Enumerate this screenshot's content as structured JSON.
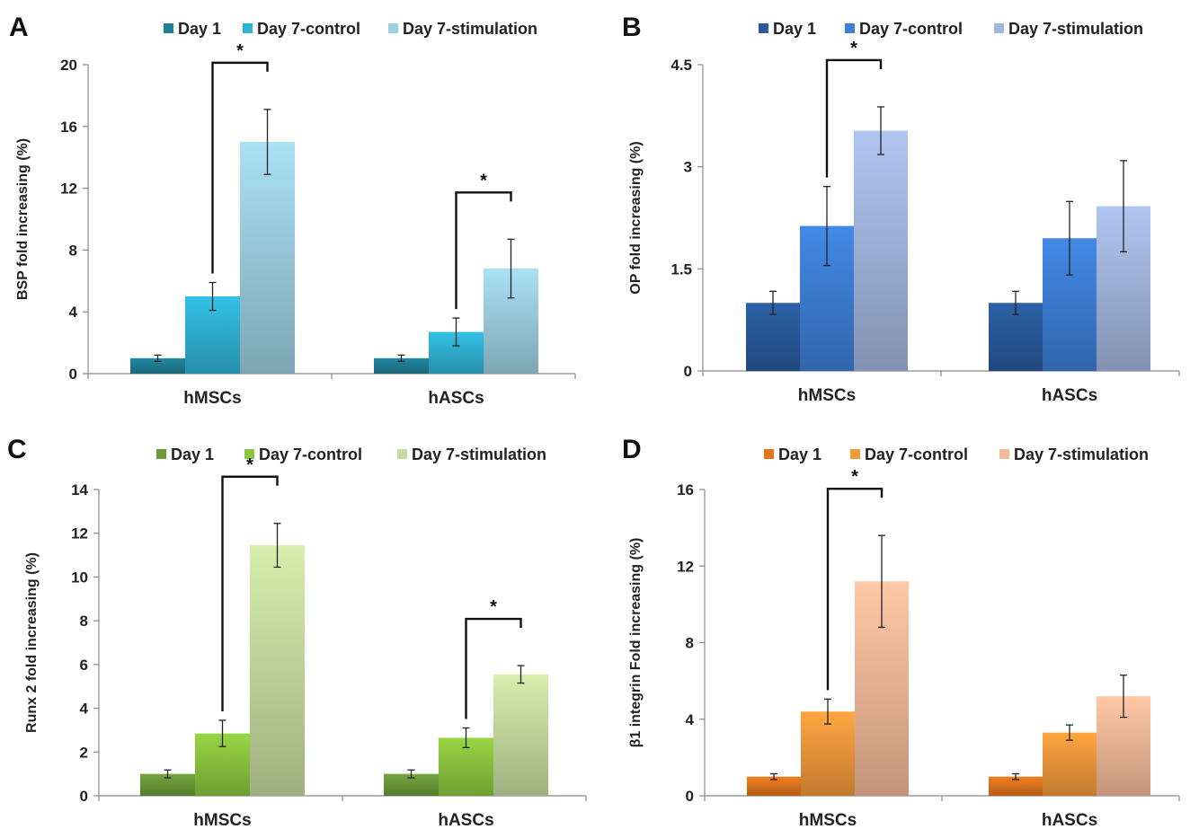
{
  "chart_data": [
    {
      "panel": "A",
      "type": "bar",
      "ylabel": "BSP fold increasing (%)",
      "categories": [
        "hMSCs",
        "hASCs"
      ],
      "yticks": [
        "0",
        "4",
        "8",
        "12",
        "16",
        "20"
      ],
      "ylim": [
        0,
        20
      ],
      "series": [
        {
          "name": "Day 1",
          "values": [
            1.0,
            1.0
          ],
          "errors": [
            0.2,
            0.2
          ]
        },
        {
          "name": "Day 7-control",
          "values": [
            5.0,
            2.7
          ],
          "errors": [
            0.9,
            0.9
          ]
        },
        {
          "name": "Day 7-stimulation",
          "values": [
            15.0,
            6.8
          ],
          "errors": [
            2.1,
            1.9
          ]
        }
      ],
      "colors": [
        "#1f7f96",
        "#2fb3d6",
        "#9dd0e2"
      ],
      "significance": [
        {
          "category": "hMSCs",
          "label": "*"
        },
        {
          "category": "hASCs",
          "label": "*"
        }
      ]
    },
    {
      "panel": "B",
      "type": "bar",
      "ylabel": "OP fold increasing (%)",
      "categories": [
        "hMSCs",
        "hASCs"
      ],
      "yticks": [
        "0",
        "1.5",
        "3",
        "4.5"
      ],
      "ylim": [
        0,
        4.5
      ],
      "series": [
        {
          "name": "Day 1",
          "values": [
            1.0,
            1.0
          ],
          "errors": [
            0.17,
            0.17
          ]
        },
        {
          "name": "Day 7-control",
          "values": [
            2.13,
            1.95
          ],
          "errors": [
            0.58,
            0.54
          ]
        },
        {
          "name": "Day 7-stimulation",
          "values": [
            3.53,
            2.42
          ],
          "errors": [
            0.35,
            0.67
          ]
        }
      ],
      "colors": [
        "#2a5a9c",
        "#3d7fd6",
        "#a3b7de"
      ],
      "significance": [
        {
          "category": "hMSCs",
          "label": "*"
        }
      ]
    },
    {
      "panel": "C",
      "type": "bar",
      "ylabel": "Runx 2 fold increasing (%)",
      "categories": [
        "hMSCs",
        "hASCs"
      ],
      "yticks": [
        "0",
        "2",
        "4",
        "6",
        "8",
        "10",
        "12",
        "14"
      ],
      "ylim": [
        0,
        14
      ],
      "series": [
        {
          "name": "Day 1",
          "values": [
            1.0,
            1.0
          ],
          "errors": [
            0.18,
            0.18
          ]
        },
        {
          "name": "Day 7-control",
          "values": [
            2.85,
            2.65
          ],
          "errors": [
            0.6,
            0.45
          ]
        },
        {
          "name": "Day 7-stimulation",
          "values": [
            11.45,
            5.55
          ],
          "errors": [
            1.0,
            0.4
          ]
        }
      ],
      "colors": [
        "#6b9a3a",
        "#8cc63f",
        "#c7dca0"
      ],
      "significance": [
        {
          "category": "hMSCs",
          "label": "*"
        },
        {
          "category": "hASCs",
          "label": "*"
        }
      ]
    },
    {
      "panel": "D",
      "type": "bar",
      "ylabel": "β1 integrin Fold increasing (%)",
      "categories": [
        "hMSCs",
        "hASCs"
      ],
      "yticks": [
        "0",
        "4",
        "8",
        "12",
        "16"
      ],
      "ylim": [
        0,
        16
      ],
      "series": [
        {
          "name": "Day 1",
          "values": [
            1.0,
            1.0
          ],
          "errors": [
            0.15,
            0.15
          ]
        },
        {
          "name": "Day 7-control",
          "values": [
            4.4,
            3.3
          ],
          "errors": [
            0.65,
            0.4
          ]
        },
        {
          "name": "Day 7-stimulation",
          "values": [
            11.2,
            5.2
          ],
          "errors": [
            2.4,
            1.1
          ]
        }
      ],
      "colors": [
        "#e0751e",
        "#f39a3c",
        "#f5b99a"
      ],
      "significance": [
        {
          "category": "hMSCs",
          "label": "*"
        }
      ]
    }
  ]
}
